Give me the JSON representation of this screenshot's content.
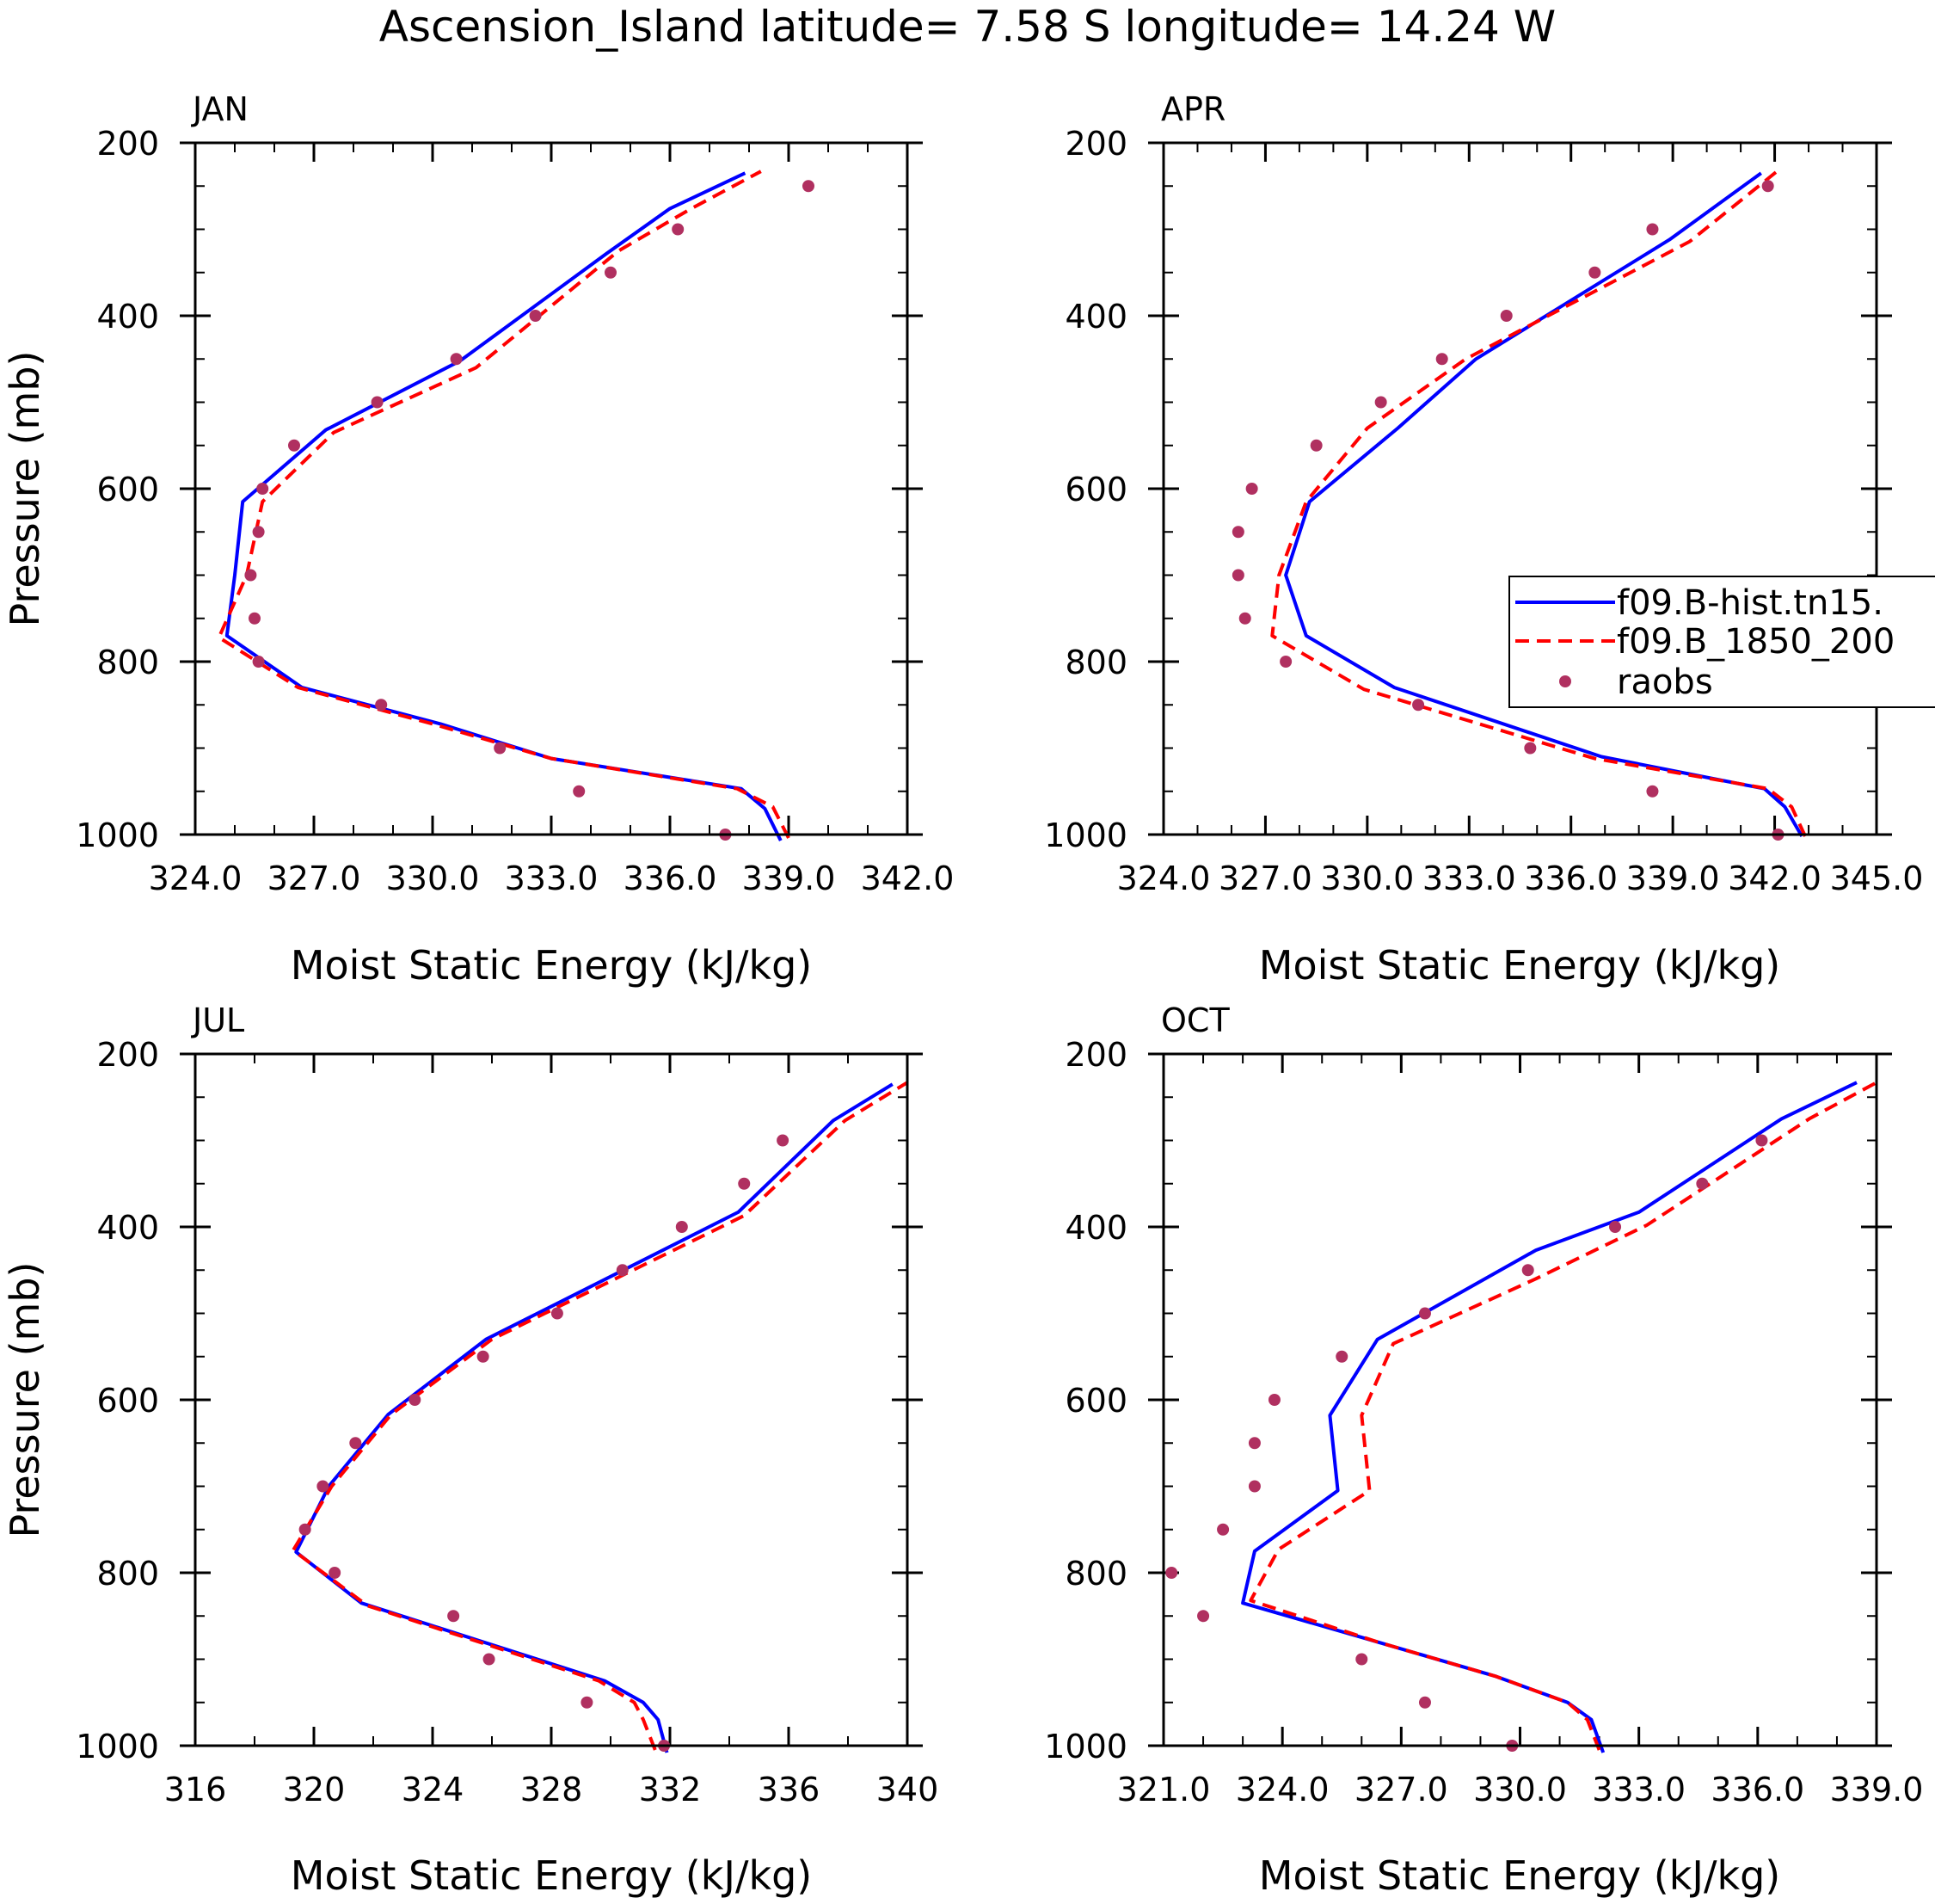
{
  "title": "Ascension_Island  latitude= 7.58 S longitude= 14.24 W",
  "colors": {
    "model_hist": "#0000ff",
    "model_1850": "#ff0000",
    "raobs": "#b03060"
  },
  "legend": {
    "entries": [
      {
        "label": "f09.B-hist.tn15.",
        "style": "solid",
        "color": "#0000ff"
      },
      {
        "label": "f09.B_1850_200",
        "style": "dashed",
        "color": "#ff0000"
      },
      {
        "label": "raobs",
        "style": "dot",
        "color": "#b03060"
      }
    ]
  },
  "chart_data": [
    {
      "type": "line",
      "panel": "JAN",
      "xlabel": "Moist Static Energy (kJ/kg)",
      "ylabel": "Pressure (mb)",
      "xlim": [
        324,
        342
      ],
      "ylim": [
        1000,
        200
      ],
      "xticks": [
        324,
        327,
        330,
        333,
        336,
        339,
        342
      ],
      "xtick_labels": [
        "324.0",
        "327.0",
        "330.0",
        "333.0",
        "336.0",
        "339.0",
        "342.0"
      ],
      "yticks": [
        200,
        400,
        600,
        800,
        1000
      ],
      "ytick_labels": [
        "200",
        "400",
        "600",
        "800",
        "1000"
      ],
      "series": [
        {
          "name": "f09.B-hist.tn15.",
          "color": "#0000ff",
          "style": "solid",
          "x": [
            338.8,
            338.4,
            337.8,
            333.0,
            330.2,
            326.7,
            324.8,
            325.0,
            325.2,
            327.3,
            330.7,
            334.4,
            336.0,
            337.9
          ],
          "y": [
            1007,
            970,
            947,
            912,
            872,
            830,
            770,
            700,
            615,
            532,
            452,
            328,
            276,
            235
          ]
        },
        {
          "name": "f09.B_1850_200",
          "color": "#ff0000",
          "style": "dashed",
          "x": [
            339.0,
            338.6,
            337.7,
            333.0,
            330.0,
            326.6,
            324.6,
            325.3,
            325.7,
            327.5,
            331.1,
            334.7,
            336.5,
            338.3
          ],
          "y": [
            1004,
            968,
            947,
            912,
            872,
            830,
            772,
            700,
            615,
            535,
            460,
            325,
            277,
            233
          ]
        },
        {
          "name": "raobs",
          "color": "#b03060",
          "style": "dot",
          "x": [
            337.4,
            333.7,
            331.7,
            328.7,
            325.6,
            325.5,
            325.4,
            325.6,
            325.7,
            326.5,
            328.6,
            330.6,
            332.6,
            334.5,
            336.2,
            339.5
          ],
          "y": [
            1000,
            950,
            900,
            850,
            800,
            750,
            700,
            650,
            600,
            550,
            500,
            450,
            400,
            350,
            300,
            250
          ]
        }
      ]
    },
    {
      "type": "line",
      "panel": "APR",
      "xlabel": "Moist Static Energy (kJ/kg)",
      "ylabel": "",
      "xlim": [
        324,
        345
      ],
      "ylim": [
        1000,
        200
      ],
      "xticks": [
        324,
        327,
        330,
        333,
        336,
        339,
        342,
        345
      ],
      "xtick_labels": [
        "324.0",
        "327.0",
        "330.0",
        "333.0",
        "336.0",
        "339.0",
        "342.0",
        "345.0"
      ],
      "yticks": [
        200,
        400,
        600,
        800,
        1000
      ],
      "ytick_labels": [
        "200",
        "400",
        "600",
        "800",
        "1000"
      ],
      "series": [
        {
          "name": "f09.B-hist.tn15.",
          "color": "#0000ff",
          "style": "solid",
          "x": [
            342.8,
            342.3,
            341.7,
            336.9,
            330.8,
            328.2,
            327.6,
            328.3,
            330.9,
            333.2,
            338.9,
            341.6
          ],
          "y": [
            1002,
            968,
            947,
            910,
            830,
            770,
            700,
            615,
            530,
            450,
            312,
            235
          ]
        },
        {
          "name": "f09.B_1850_200",
          "color": "#ff0000",
          "style": "dashed",
          "x": [
            342.9,
            342.5,
            341.8,
            336.7,
            329.9,
            327.2,
            327.4,
            328.2,
            330.0,
            332.9,
            339.5,
            342.1
          ],
          "y": [
            1002,
            968,
            947,
            912,
            832,
            770,
            700,
            615,
            530,
            450,
            314,
            232
          ]
        },
        {
          "name": "raobs",
          "color": "#b03060",
          "style": "dot",
          "x": [
            342.1,
            338.4,
            334.8,
            331.5,
            327.6,
            326.4,
            326.2,
            326.2,
            326.6,
            328.5,
            330.4,
            332.2,
            334.1,
            336.7,
            338.4,
            341.8
          ],
          "y": [
            1000,
            950,
            900,
            850,
            800,
            750,
            700,
            650,
            600,
            550,
            500,
            450,
            400,
            350,
            300,
            250
          ]
        }
      ]
    },
    {
      "type": "line",
      "panel": "JUL",
      "xlabel": "Moist Static Energy (kJ/kg)",
      "ylabel": "Pressure (mb)",
      "xlim": [
        316,
        340
      ],
      "ylim": [
        1000,
        200
      ],
      "xticks": [
        316,
        320,
        324,
        328,
        332,
        336,
        340
      ],
      "xtick_labels": [
        "316",
        "320",
        "324",
        "328",
        "332",
        "336",
        "340"
      ],
      "yticks": [
        200,
        400,
        600,
        800,
        1000
      ],
      "ytick_labels": [
        "200",
        "400",
        "600",
        "800",
        "1000"
      ],
      "series": [
        {
          "name": "f09.B-hist.tn15.",
          "color": "#0000ff",
          "style": "solid",
          "x": [
            331.9,
            331.6,
            331.1,
            329.8,
            321.6,
            319.4,
            320.5,
            322.5,
            325.8,
            334.3,
            337.5,
            339.5
          ],
          "y": [
            1008,
            970,
            950,
            925,
            835,
            776,
            700,
            617,
            530,
            383,
            277,
            235
          ]
        },
        {
          "name": "f09.B_1850_200",
          "color": "#ff0000",
          "style": "dashed",
          "x": [
            331.5,
            331.1,
            330.8,
            329.6,
            321.8,
            319.3,
            320.6,
            322.6,
            326.0,
            334.5,
            337.9,
            340.0
          ],
          "y": [
            1005,
            970,
            950,
            925,
            838,
            774,
            700,
            617,
            530,
            387,
            277,
            233
          ]
        },
        {
          "name": "raobs",
          "color": "#b03060",
          "style": "dot",
          "x": [
            331.8,
            329.2,
            325.9,
            324.7,
            320.7,
            319.7,
            320.3,
            321.4,
            323.4,
            325.7,
            328.2,
            330.4,
            332.4,
            334.5,
            335.8
          ],
          "y": [
            1000,
            950,
            900,
            850,
            800,
            750,
            700,
            650,
            600,
            550,
            500,
            450,
            400,
            350,
            300
          ]
        }
      ]
    },
    {
      "type": "line",
      "panel": "OCT",
      "xlabel": "Moist Static Energy (kJ/kg)",
      "ylabel": "",
      "xlim": [
        321,
        339
      ],
      "ylim": [
        1000,
        200
      ],
      "xticks": [
        321,
        324,
        327,
        330,
        333,
        336,
        339
      ],
      "xtick_labels": [
        "321.0",
        "324.0",
        "327.0",
        "330.0",
        "333.0",
        "336.0",
        "339.0"
      ],
      "yticks": [
        200,
        400,
        600,
        800,
        1000
      ],
      "ytick_labels": [
        "200",
        "400",
        "600",
        "800",
        "1000"
      ],
      "series": [
        {
          "name": "f09.B-hist.tn15.",
          "color": "#0000ff",
          "style": "solid",
          "x": [
            332.1,
            331.8,
            331.2,
            329.4,
            326.4,
            323.0,
            323.3,
            325.4,
            325.2,
            326.4,
            330.4,
            333.0,
            336.6,
            338.5
          ],
          "y": [
            1008,
            970,
            950,
            920,
            880,
            835,
            775,
            705,
            618,
            530,
            427,
            383,
            275,
            233
          ]
        },
        {
          "name": "f09.B_1850_200",
          "color": "#ff0000",
          "style": "dashed",
          "x": [
            332.0,
            331.7,
            331.2,
            329.4,
            326.4,
            323.2,
            323.9,
            326.2,
            326.0,
            326.8,
            330.4,
            333.2,
            337.3,
            339.0
          ],
          "y": [
            1005,
            970,
            950,
            920,
            880,
            832,
            773,
            705,
            618,
            535,
            460,
            398,
            275,
            233
          ]
        },
        {
          "name": "raobs",
          "color": "#b03060",
          "style": "dot",
          "x": [
            329.8,
            327.6,
            326.0,
            322.0,
            321.2,
            322.5,
            323.3,
            323.3,
            323.8,
            325.5,
            327.6,
            330.2,
            332.4,
            334.6,
            336.1
          ],
          "y": [
            1000,
            950,
            900,
            850,
            800,
            750,
            700,
            650,
            600,
            550,
            500,
            450,
            400,
            350,
            300
          ]
        }
      ]
    }
  ]
}
